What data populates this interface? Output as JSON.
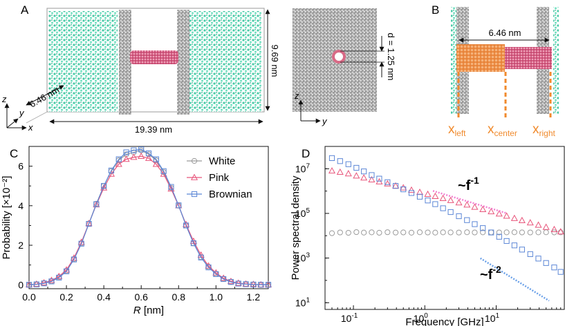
{
  "panels": {
    "a": "A",
    "b": "B",
    "c": "C",
    "d": "D"
  },
  "panel_a": {
    "dim_height": "9.69 nm",
    "dim_width": "19.39 nm",
    "dim_depth": "6.46 nm",
    "pore_label": "d = 1.25 nm",
    "axis_z": "z",
    "axis_y": "y",
    "axis_x": "x"
  },
  "panel_b": {
    "dim_length": "6.46 nm",
    "x_left": "x",
    "x_left_sub": "left",
    "x_center": "x",
    "x_center_sub": "center",
    "x_right": "x",
    "x_right_sub": "right"
  },
  "colors": {
    "water": "#5fd6b8",
    "membrane": "#9a9a9a",
    "tube": "#d86a86",
    "orange": "#f08a2c",
    "white_series": "#9a9a9a",
    "pink_series": "#e8547a",
    "brownian_series": "#5b86d6",
    "pink_fit": "#f27fd0",
    "blue_fit": "#6aa0e8"
  },
  "chart_data": [
    {
      "id": "C",
      "type": "line",
      "xlabel_main": "R",
      "xlabel_unit": " [nm]",
      "ylabel": "Probability [×10⁻²]",
      "xlim": [
        0,
        1.28
      ],
      "ylim": [
        -0.2,
        7
      ],
      "xticks": [
        "0.0",
        "0.2",
        "0.4",
        "0.6",
        "0.8",
        "1.0",
        "1.2"
      ],
      "yticks": [
        "0",
        "2",
        "4",
        "6"
      ],
      "x": [
        0.0,
        0.04,
        0.08,
        0.12,
        0.16,
        0.2,
        0.24,
        0.28,
        0.32,
        0.36,
        0.4,
        0.44,
        0.48,
        0.52,
        0.56,
        0.6,
        0.64,
        0.68,
        0.72,
        0.76,
        0.8,
        0.84,
        0.88,
        0.92,
        0.96,
        1.0,
        1.04,
        1.08,
        1.12,
        1.16,
        1.2,
        1.24,
        1.28
      ],
      "series": [
        {
          "name": "White",
          "marker": "circle",
          "values": [
            0.0,
            0.02,
            0.08,
            0.18,
            0.38,
            0.7,
            1.3,
            2.1,
            3.1,
            4.1,
            5.0,
            5.75,
            6.3,
            6.6,
            6.7,
            6.8,
            6.6,
            6.3,
            5.7,
            4.9,
            4.0,
            3.0,
            2.1,
            1.4,
            0.9,
            0.55,
            0.3,
            0.15,
            0.07,
            0.03,
            0.01,
            0.0,
            0.0
          ]
        },
        {
          "name": "Pink",
          "marker": "triangle",
          "values": [
            0.0,
            0.03,
            0.1,
            0.22,
            0.42,
            0.75,
            1.35,
            2.15,
            3.1,
            4.05,
            4.9,
            5.6,
            6.1,
            6.35,
            6.45,
            6.5,
            6.4,
            6.1,
            5.6,
            4.85,
            4.0,
            3.05,
            2.2,
            1.5,
            0.95,
            0.6,
            0.33,
            0.17,
            0.08,
            0.04,
            0.02,
            0.0,
            0.0
          ]
        },
        {
          "name": "Brownian",
          "marker": "square",
          "values": [
            0.0,
            0.02,
            0.07,
            0.17,
            0.36,
            0.68,
            1.28,
            2.08,
            3.08,
            4.08,
            5.0,
            5.78,
            6.35,
            6.7,
            6.8,
            6.85,
            6.65,
            6.35,
            5.75,
            4.95,
            4.02,
            3.0,
            2.1,
            1.38,
            0.88,
            0.54,
            0.29,
            0.14,
            0.06,
            0.03,
            0.01,
            0.0,
            0.0
          ]
        }
      ],
      "legend": [
        "White",
        "Pink",
        "Brownian"
      ]
    },
    {
      "id": "D",
      "type": "scatter",
      "xscale": "log",
      "yscale": "log",
      "xlabel": "Frequency [GHz]",
      "ylabel": "Power spectral density",
      "xlim": [
        0.04,
        90
      ],
      "ylim": [
        5,
        100000000
      ],
      "xticks": [
        {
          "value": 0.1,
          "base": "10",
          "exp": "-1"
        },
        {
          "value": 1,
          "base": "10",
          "exp": "0"
        },
        {
          "value": 10,
          "base": "10",
          "exp": "1"
        }
      ],
      "yticks": [
        {
          "value": 10,
          "base": "10",
          "exp": "1"
        },
        {
          "value": 1000,
          "base": "10",
          "exp": "3"
        },
        {
          "value": 100000,
          "base": "10",
          "exp": "5"
        },
        {
          "value": 10000000,
          "base": "10",
          "exp": "7"
        }
      ],
      "x": [
        0.05,
        0.065,
        0.085,
        0.11,
        0.14,
        0.18,
        0.23,
        0.3,
        0.39,
        0.5,
        0.65,
        0.85,
        1.1,
        1.4,
        1.8,
        2.3,
        3.0,
        3.9,
        5.0,
        6.5,
        8.5,
        11,
        14,
        18,
        23,
        30,
        39,
        50,
        65,
        80
      ],
      "series": [
        {
          "name": "White",
          "marker": "circle",
          "values": [
            13000,
            14000,
            13500,
            14500,
            13800,
            14200,
            13600,
            14400,
            13900,
            14100,
            13700,
            14300,
            14000,
            13800,
            14200,
            14100,
            13900,
            14300,
            14000,
            14200,
            14100,
            14000,
            14200,
            14300,
            14100,
            14000,
            14200,
            14300,
            14100,
            14200
          ]
        },
        {
          "name": "Pink",
          "marker": "triangle",
          "values": [
            8000000,
            7000000,
            6000000,
            4800000,
            3900000,
            3200000,
            2600000,
            2100000,
            1700000,
            1400000,
            1100000,
            880000,
            720000,
            580000,
            470000,
            380000,
            300000,
            240000,
            190000,
            150000,
            120000,
            95000,
            76000,
            60000,
            48000,
            38000,
            30000,
            24000,
            19000,
            15000
          ]
        },
        {
          "name": "Brownian",
          "marker": "square",
          "values": [
            30000000,
            22000000,
            16000000,
            11000000,
            7600000,
            5200000,
            3600000,
            2500000,
            1700000,
            1200000,
            820000,
            560000,
            380000,
            260000,
            170000,
            115000,
            75000,
            50000,
            33000,
            22000,
            14000,
            9000,
            5800,
            3700,
            2400,
            1500,
            950,
            600,
            380,
            240
          ]
        }
      ],
      "fit_labels": [
        {
          "text_base": "~f",
          "exp": "-1"
        },
        {
          "text_base": "~f",
          "exp": "-2"
        }
      ]
    }
  ]
}
